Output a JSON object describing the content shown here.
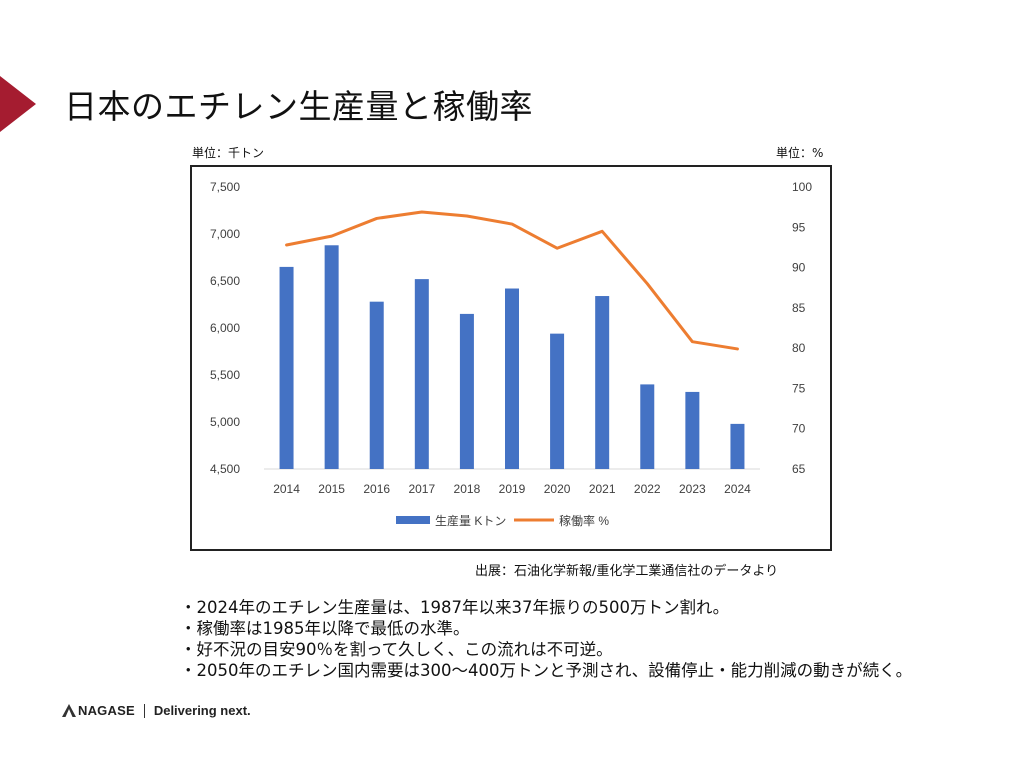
{
  "slide": {
    "title": "日本のエチレン生産量と稼働率",
    "left_unit": "単位：千トン",
    "right_unit": "単位：%",
    "source": "出展：石油化学新報/重化学工業通信社のデータより"
  },
  "bullets": [
    "・2024年のエチレン生産量は、1987年以来37年振りの500万トン割れ。",
    "・稼働率は1985年以降で最低の水準。",
    "・好不況の目安90％を割って久しく、この流れは不可逆。",
    "・2050年のエチレン国内需要は300～400万トンと予測され、設備停止・能力削減の動きが続く。"
  ],
  "footer": {
    "logo": "NAGASE",
    "tagline": "Delivering next."
  },
  "colors": {
    "accent": "#a51c30",
    "bar": "#4472c4",
    "line": "#ed7d31"
  },
  "chart_data": {
    "type": "bar",
    "categories": [
      "2014",
      "2015",
      "2016",
      "2017",
      "2018",
      "2019",
      "2020",
      "2021",
      "2022",
      "2023",
      "2024"
    ],
    "series": [
      {
        "name": "生産量 Kトン",
        "type": "bar",
        "axis": "left",
        "values": [
          6650,
          6880,
          6280,
          6520,
          6150,
          6420,
          5940,
          6340,
          5400,
          5320,
          4980
        ]
      },
      {
        "name": "稼働率 %",
        "type": "line",
        "axis": "right",
        "values": [
          92.8,
          93.9,
          96.1,
          96.9,
          96.4,
          95.4,
          92.4,
          94.5,
          88.0,
          80.8,
          79.9
        ]
      }
    ],
    "left_axis": {
      "ylim": [
        4500,
        7500
      ],
      "ticks": [
        4500,
        5000,
        5500,
        6000,
        6500,
        7000,
        7500
      ],
      "tick_labels": [
        "4,500",
        "5,000",
        "5,500",
        "6,000",
        "6,500",
        "7,000",
        "7,500"
      ]
    },
    "right_axis": {
      "ylim": [
        65,
        100
      ],
      "ticks": [
        65,
        70,
        75,
        80,
        85,
        90,
        95,
        100
      ],
      "tick_labels": [
        "65",
        "70",
        "75",
        "80",
        "85",
        "90",
        "95",
        "100"
      ]
    },
    "legend": [
      "生産量 Kトン",
      "稼働率 %"
    ],
    "legend_position": "bottom",
    "grid": false
  }
}
